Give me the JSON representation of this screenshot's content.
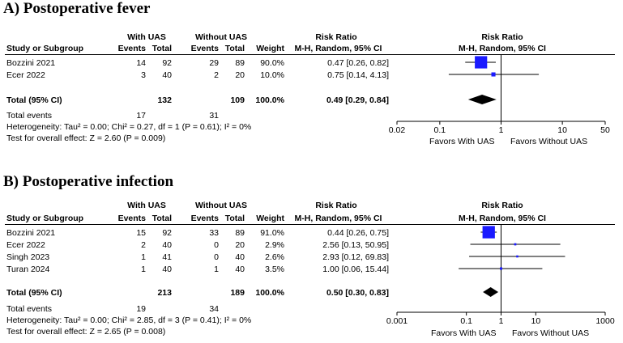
{
  "panels": [
    {
      "title": "A) Postoperative fever",
      "header": {
        "group1": "With UAS",
        "group2": "Without UAS",
        "study": "Study or Subgroup",
        "events": "Events",
        "total": "Total",
        "weight": "Weight",
        "rr": "Risk Ratio",
        "rr_method": "M-H, Random, 95% CI",
        "plot_rr": "Risk Ratio",
        "plot_method": "M-H, Random, 95% CI"
      },
      "studies": [
        {
          "name": "Bozzini 2021",
          "e1": "14",
          "t1": "92",
          "e2": "29",
          "t2": "89",
          "weight": "90.0%",
          "ci_text": "0.47 [0.26, 0.82]"
        },
        {
          "name": "Ecer 2022",
          "e1": "3",
          "t1": "40",
          "e2": "2",
          "t2": "20",
          "weight": "10.0%",
          "ci_text": "0.75 [0.14, 4.13]"
        }
      ],
      "total": {
        "label": "Total (95% CI)",
        "t1": "132",
        "t2": "109",
        "weight": "100.0%",
        "ci_text": "0.49 [0.29, 0.84]"
      },
      "total_events": {
        "label": "Total events",
        "e1": "17",
        "e2": "31"
      },
      "heterogeneity": "Heterogeneity: Tau² = 0.00; Chi² = 0.27, df = 1 (P = 0.61); I² = 0%",
      "overall": "Test for overall effect: Z = 2.60 (P = 0.009)",
      "favors_left": "Favors With UAS",
      "favors_right": "Favors Without UAS"
    },
    {
      "title": "B) Postoperative infection",
      "header": {
        "group1": "With UAS",
        "group2": "Without UAS",
        "study": "Study or Subgroup",
        "events": "Events",
        "total": "Total",
        "weight": "Weight",
        "rr": "Risk Ratio",
        "rr_method": "M-H, Random, 95% CI",
        "plot_rr": "Risk Ratio",
        "plot_method": "M-H, Random, 95% CI"
      },
      "studies": [
        {
          "name": "Bozzini 2021",
          "e1": "15",
          "t1": "92",
          "e2": "33",
          "t2": "89",
          "weight": "91.0%",
          "ci_text": "0.44 [0.26, 0.75]"
        },
        {
          "name": "Ecer 2022",
          "e1": "2",
          "t1": "40",
          "e2": "0",
          "t2": "20",
          "weight": "2.9%",
          "ci_text": "2.56 [0.13, 50.95]"
        },
        {
          "name": "Singh 2023",
          "e1": "1",
          "t1": "41",
          "e2": "0",
          "t2": "40",
          "weight": "2.6%",
          "ci_text": "2.93 [0.12, 69.83]"
        },
        {
          "name": "Turan 2024",
          "e1": "1",
          "t1": "40",
          "e2": "1",
          "t2": "40",
          "weight": "3.5%",
          "ci_text": "1.00 [0.06, 15.44]"
        }
      ],
      "total": {
        "label": "Total (95% CI)",
        "t1": "213",
        "t2": "189",
        "weight": "100.0%",
        "ci_text": "0.50 [0.30, 0.83]"
      },
      "total_events": {
        "label": "Total events",
        "e1": "19",
        "e2": "34"
      },
      "heterogeneity": "Heterogeneity: Tau² = 0.00; Chi² = 2.85, df = 3 (P = 0.41); I² = 0%",
      "overall": "Test for overall effect: Z = 2.65 (P = 0.008)",
      "favors_left": "Favors With UAS",
      "favors_right": "Favors Without UAS"
    }
  ],
  "chart_data": [
    {
      "type": "forest",
      "title": "A) Postoperative fever",
      "xscale": "log",
      "xlim": [
        0.02,
        50
      ],
      "xticks": [
        0.02,
        0.1,
        1,
        10,
        50
      ],
      "xtick_labels": [
        "0.02",
        "0.1",
        "1",
        "10",
        "50"
      ],
      "null_line": 1,
      "marker_color": "#1a1aff",
      "studies": [
        {
          "name": "Bozzini 2021",
          "rr": 0.47,
          "lo": 0.26,
          "hi": 0.82,
          "weight": 90.0
        },
        {
          "name": "Ecer 2022",
          "rr": 0.75,
          "lo": 0.14,
          "hi": 4.13,
          "weight": 10.0
        }
      ],
      "pooled": {
        "rr": 0.49,
        "lo": 0.29,
        "hi": 0.84
      }
    },
    {
      "type": "forest",
      "title": "B) Postoperative infection",
      "xscale": "log",
      "xlim": [
        0.001,
        1000
      ],
      "xticks": [
        0.001,
        0.1,
        1,
        10,
        1000
      ],
      "xtick_labels": [
        "0.001",
        "0.1",
        "1",
        "10",
        "1000"
      ],
      "null_line": 1,
      "marker_color": "#1a1aff",
      "studies": [
        {
          "name": "Bozzini 2021",
          "rr": 0.44,
          "lo": 0.26,
          "hi": 0.75,
          "weight": 91.0
        },
        {
          "name": "Ecer 2022",
          "rr": 2.56,
          "lo": 0.13,
          "hi": 50.95,
          "weight": 2.9
        },
        {
          "name": "Singh 2023",
          "rr": 2.93,
          "lo": 0.12,
          "hi": 69.83,
          "weight": 2.6
        },
        {
          "name": "Turan 2024",
          "rr": 1.0,
          "lo": 0.06,
          "hi": 15.44,
          "weight": 3.5
        }
      ],
      "pooled": {
        "rr": 0.5,
        "lo": 0.3,
        "hi": 0.83
      }
    }
  ]
}
